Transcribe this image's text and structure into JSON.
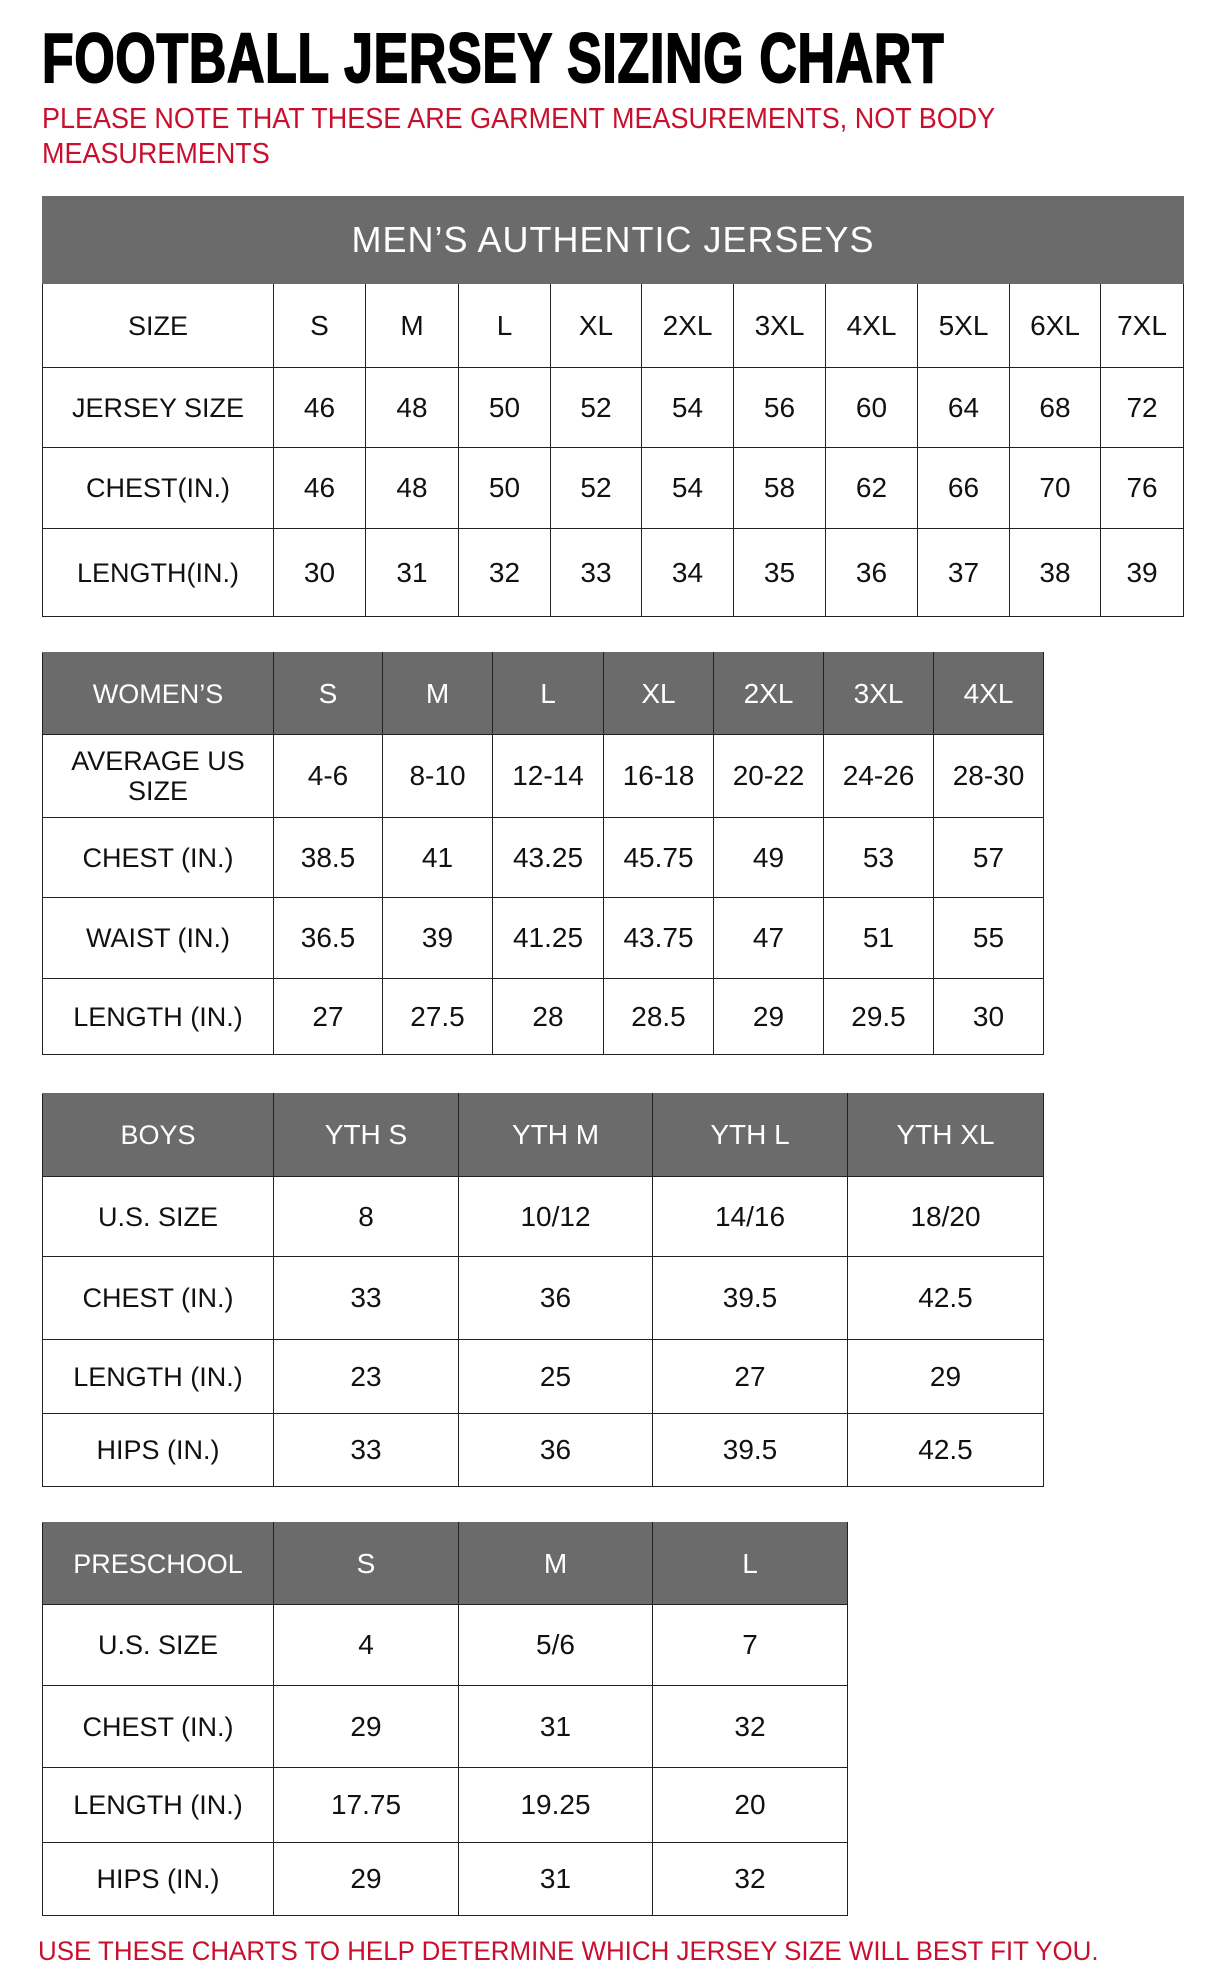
{
  "title": "FOOTBALL JERSEY SIZING CHART",
  "note": "PLEASE NOTE THAT THESE ARE GARMENT MEASUREMENTS, NOT BODY MEASUREMENTS",
  "footer": "USE THESE CHARTS TO HELP DETERMINE WHICH JERSEY SIZE WILL BEST FIT YOU.",
  "colors": {
    "header_bg": "#6b6b6b",
    "note_red": "#c8102e"
  },
  "tables": [
    {
      "banner": "MEN’S AUTHENTIC JERSEYS",
      "header": [
        "SIZE",
        "S",
        "M",
        "L",
        "XL",
        "2XL",
        "3XL",
        "4XL",
        "5XL",
        "6XL",
        "7XL"
      ],
      "header_style": "plain",
      "rows": [
        [
          "JERSEY SIZE",
          "46",
          "48",
          "50",
          "52",
          "54",
          "56",
          "60",
          "64",
          "68",
          "72"
        ],
        [
          "CHEST(IN.)",
          "46",
          "48",
          "50",
          "52",
          "54",
          "58",
          "62",
          "66",
          "70",
          "76"
        ],
        [
          "LENGTH(IN.)",
          "30",
          "31",
          "32",
          "33",
          "34",
          "35",
          "36",
          "37",
          "38",
          "39"
        ]
      ]
    },
    {
      "header": [
        "WOMEN’S",
        "S",
        "M",
        "L",
        "XL",
        "2XL",
        "3XL",
        "4XL"
      ],
      "header_style": "gray",
      "rows": [
        [
          "AVERAGE US SIZE",
          "4-6",
          "8-10",
          "12-14",
          "16-18",
          "20-22",
          "24-26",
          "28-30"
        ],
        [
          "CHEST (IN.)",
          "38.5",
          "41",
          "43.25",
          "45.75",
          "49",
          "53",
          "57"
        ],
        [
          "WAIST (IN.)",
          "36.5",
          "39",
          "41.25",
          "43.75",
          "47",
          "51",
          "55"
        ],
        [
          "LENGTH (IN.)",
          "27",
          "27.5",
          "28",
          "28.5",
          "29",
          "29.5",
          "30"
        ]
      ]
    },
    {
      "header": [
        "BOYS",
        "YTH S",
        "YTH M",
        "YTH L",
        "YTH XL"
      ],
      "header_style": "gray",
      "rows": [
        [
          "U.S. SIZE",
          "8",
          "10/12",
          "14/16",
          "18/20"
        ],
        [
          "CHEST (IN.)",
          "33",
          "36",
          "39.5",
          "42.5"
        ],
        [
          "LENGTH (IN.)",
          "23",
          "25",
          "27",
          "29"
        ],
        [
          "HIPS (IN.)",
          "33",
          "36",
          "39.5",
          "42.5"
        ]
      ]
    },
    {
      "header": [
        "PRESCHOOL",
        "S",
        "M",
        "L"
      ],
      "header_style": "gray",
      "rows": [
        [
          "U.S. SIZE",
          "4",
          "5/6",
          "7"
        ],
        [
          "CHEST (IN.)",
          "29",
          "31",
          "32"
        ],
        [
          "LENGTH (IN.)",
          "17.75",
          "19.25",
          "20"
        ],
        [
          "HIPS (IN.)",
          "29",
          "31",
          "32"
        ]
      ]
    }
  ]
}
